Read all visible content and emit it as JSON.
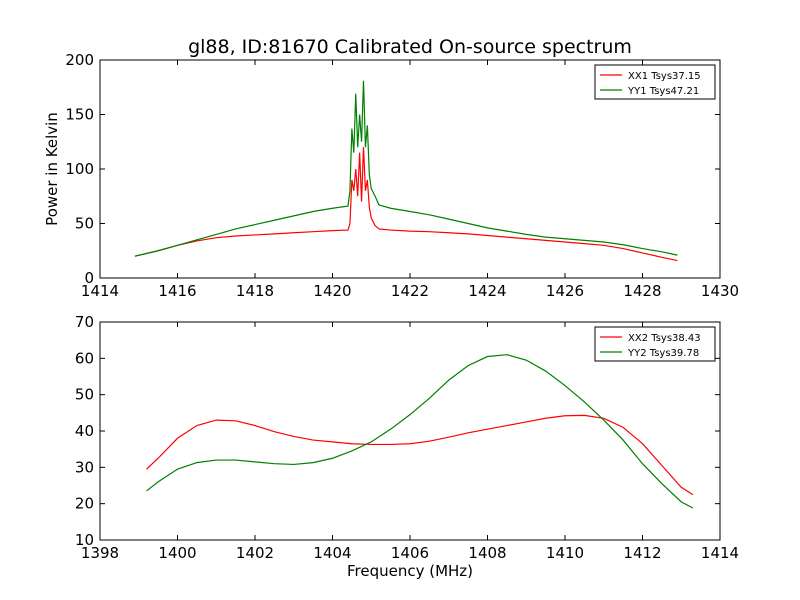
{
  "figure": {
    "title": "gl88, ID:81670 Calibrated On-source spectrum",
    "ylabel": "Power in Kelvin",
    "xlabel": "Frequency (MHz)"
  },
  "chart_data": [
    {
      "type": "line",
      "title": "gl88, ID:81670 Calibrated On-source spectrum",
      "xlabel": "",
      "ylabel": "Power in Kelvin",
      "xlim": [
        1414,
        1430
      ],
      "ylim": [
        0,
        200
      ],
      "xticks": [
        "1414",
        "1416",
        "1418",
        "1420",
        "1422",
        "1424",
        "1426",
        "1428",
        "1430"
      ],
      "yticks": [
        "0",
        "50",
        "100",
        "150",
        "200"
      ],
      "legend_position": "top-right",
      "grid": false,
      "series": [
        {
          "name": "XX1 Tsys37.15",
          "color": "#ff0000",
          "points": [
            [
              1414.9,
              20
            ],
            [
              1415.5,
              25
            ],
            [
              1416,
              30
            ],
            [
              1416.5,
              34
            ],
            [
              1417,
              37
            ],
            [
              1417.5,
              38.5
            ],
            [
              1418,
              39.5
            ],
            [
              1418.5,
              40.5
            ],
            [
              1419,
              41.5
            ],
            [
              1419.5,
              42.5
            ],
            [
              1420,
              43.5
            ],
            [
              1420.4,
              44
            ],
            [
              1420.45,
              50
            ],
            [
              1420.5,
              90
            ],
            [
              1420.55,
              80
            ],
            [
              1420.6,
              100
            ],
            [
              1420.65,
              75
            ],
            [
              1420.7,
              115
            ],
            [
              1420.75,
              70
            ],
            [
              1420.8,
              120
            ],
            [
              1420.85,
              80
            ],
            [
              1420.9,
              90
            ],
            [
              1420.95,
              65
            ],
            [
              1421,
              55
            ],
            [
              1421.1,
              48
            ],
            [
              1421.2,
              45
            ],
            [
              1421.5,
              44
            ],
            [
              1422,
              43
            ],
            [
              1422.5,
              42.5
            ],
            [
              1423,
              41.5
            ],
            [
              1423.5,
              40.5
            ],
            [
              1424,
              39
            ],
            [
              1424.5,
              37.5
            ],
            [
              1425,
              36
            ],
            [
              1425.5,
              34.5
            ],
            [
              1426,
              33
            ],
            [
              1426.5,
              31.5
            ],
            [
              1427,
              30
            ],
            [
              1427.5,
              27
            ],
            [
              1428,
              23
            ],
            [
              1428.5,
              19
            ],
            [
              1428.9,
              16
            ]
          ]
        },
        {
          "name": "YY1 Tsys47.21",
          "color": "#008000",
          "points": [
            [
              1414.9,
              20
            ],
            [
              1415.5,
              25
            ],
            [
              1416,
              30
            ],
            [
              1416.5,
              35
            ],
            [
              1417,
              40
            ],
            [
              1417.5,
              45
            ],
            [
              1418,
              49
            ],
            [
              1418.5,
              53
            ],
            [
              1419,
              57
            ],
            [
              1419.5,
              61
            ],
            [
              1420,
              64
            ],
            [
              1420.4,
              66
            ],
            [
              1420.45,
              80
            ],
            [
              1420.5,
              137
            ],
            [
              1420.55,
              115
            ],
            [
              1420.6,
              169
            ],
            [
              1420.65,
              120
            ],
            [
              1420.7,
              150
            ],
            [
              1420.75,
              125
            ],
            [
              1420.8,
              181
            ],
            [
              1420.85,
              120
            ],
            [
              1420.9,
              140
            ],
            [
              1420.95,
              95
            ],
            [
              1421,
              82
            ],
            [
              1421.1,
              75
            ],
            [
              1421.2,
              67
            ],
            [
              1421.5,
              64
            ],
            [
              1422,
              61
            ],
            [
              1422.5,
              58
            ],
            [
              1423,
              54
            ],
            [
              1423.5,
              50
            ],
            [
              1424,
              46
            ],
            [
              1424.5,
              43
            ],
            [
              1425,
              40
            ],
            [
              1425.5,
              37.5
            ],
            [
              1426,
              36
            ],
            [
              1426.5,
              34.5
            ],
            [
              1427,
              33
            ],
            [
              1427.5,
              30.5
            ],
            [
              1428,
              27
            ],
            [
              1428.5,
              24
            ],
            [
              1428.9,
              21
            ]
          ]
        }
      ]
    },
    {
      "type": "line",
      "title": "",
      "xlabel": "Frequency (MHz)",
      "ylabel": "Power in Kelvin",
      "xlim": [
        1398,
        1414
      ],
      "ylim": [
        10,
        70
      ],
      "xticks": [
        "1398",
        "1400",
        "1402",
        "1404",
        "1406",
        "1408",
        "1410",
        "1412",
        "1414"
      ],
      "yticks": [
        "10",
        "20",
        "30",
        "40",
        "50",
        "60",
        "70"
      ],
      "legend_position": "top-right",
      "grid": false,
      "series": [
        {
          "name": "XX2 Tsys38.43",
          "color": "#ff0000",
          "points": [
            [
              1399.2,
              29.5
            ],
            [
              1399.5,
              32.5
            ],
            [
              1400,
              38
            ],
            [
              1400.5,
              41.5
            ],
            [
              1401,
              43
            ],
            [
              1401.5,
              42.8
            ],
            [
              1402,
              41.5
            ],
            [
              1402.5,
              39.8
            ],
            [
              1403,
              38.5
            ],
            [
              1403.5,
              37.5
            ],
            [
              1404,
              37
            ],
            [
              1404.5,
              36.5
            ],
            [
              1405,
              36.3
            ],
            [
              1405.5,
              36.3
            ],
            [
              1406,
              36.5
            ],
            [
              1406.5,
              37.2
            ],
            [
              1407,
              38.3
            ],
            [
              1407.5,
              39.5
            ],
            [
              1408,
              40.5
            ],
            [
              1408.5,
              41.5
            ],
            [
              1409,
              42.5
            ],
            [
              1409.5,
              43.5
            ],
            [
              1410,
              44.2
            ],
            [
              1410.5,
              44.3
            ],
            [
              1411,
              43.5
            ],
            [
              1411.5,
              41
            ],
            [
              1412,
              36.5
            ],
            [
              1412.5,
              30.5
            ],
            [
              1413,
              24.5
            ],
            [
              1413.3,
              22.5
            ]
          ]
        },
        {
          "name": "YY2 Tsys39.78",
          "color": "#008000",
          "points": [
            [
              1399.2,
              23.5
            ],
            [
              1399.5,
              26
            ],
            [
              1400,
              29.5
            ],
            [
              1400.5,
              31.3
            ],
            [
              1401,
              32
            ],
            [
              1401.5,
              32
            ],
            [
              1402,
              31.5
            ],
            [
              1402.5,
              31
            ],
            [
              1403,
              30.8
            ],
            [
              1403.5,
              31.3
            ],
            [
              1404,
              32.5
            ],
            [
              1404.5,
              34.5
            ],
            [
              1405,
              37
            ],
            [
              1405.5,
              40.5
            ],
            [
              1406,
              44.5
            ],
            [
              1406.5,
              49
            ],
            [
              1407,
              54
            ],
            [
              1407.5,
              58
            ],
            [
              1408,
              60.5
            ],
            [
              1408.5,
              61
            ],
            [
              1409,
              59.5
            ],
            [
              1409.5,
              56.5
            ],
            [
              1410,
              52.5
            ],
            [
              1410.5,
              48
            ],
            [
              1411,
              43
            ],
            [
              1411.5,
              37.5
            ],
            [
              1412,
              31
            ],
            [
              1412.5,
              25.5
            ],
            [
              1413,
              20.5
            ],
            [
              1413.3,
              18.8
            ]
          ]
        }
      ]
    }
  ]
}
